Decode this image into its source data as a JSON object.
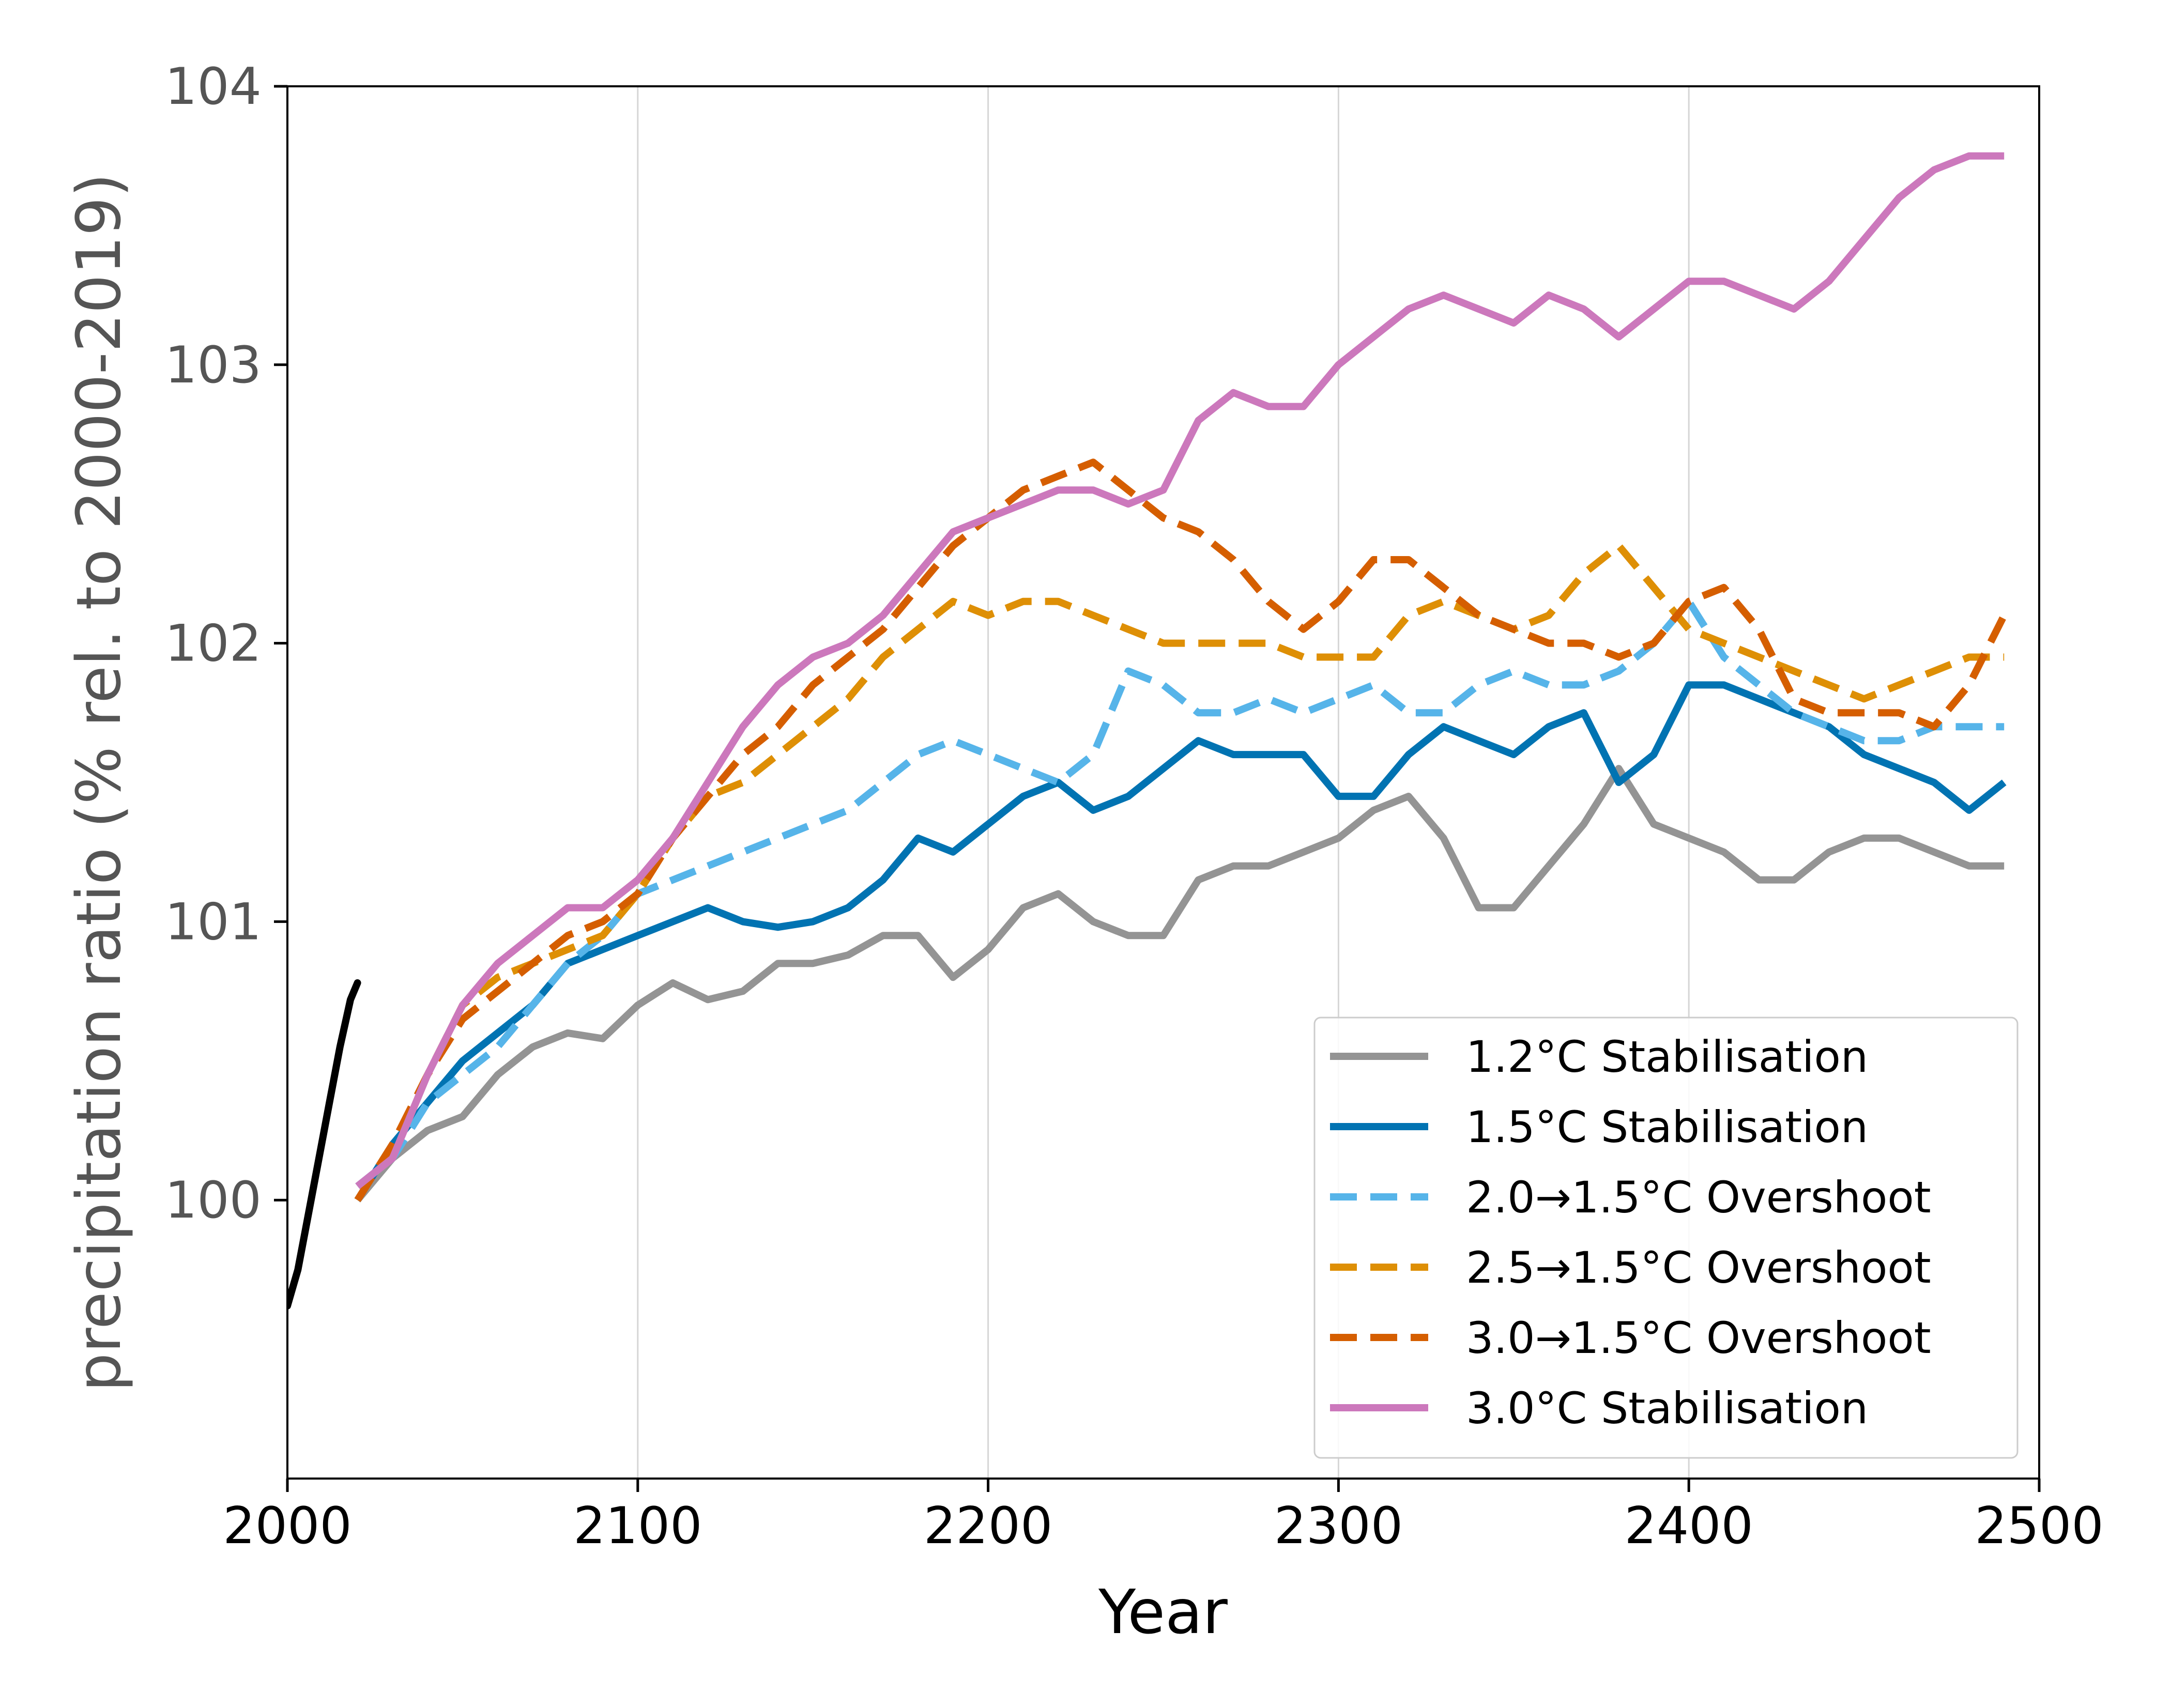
{
  "chart_data": {
    "type": "line",
    "title": "",
    "xlabel": "Year",
    "ylabel": "precipitation ratio (% rel. to 2000-2019)",
    "xlim": [
      2000,
      2500
    ],
    "ylim": [
      99,
      104
    ],
    "xticks": [
      2000,
      2100,
      2200,
      2300,
      2400,
      2500
    ],
    "yticks": [
      100,
      101,
      102,
      103,
      104
    ],
    "grid": "vertical lines at x ticks",
    "legend_position": "lower-right",
    "historical": {
      "color": "#000000",
      "x": [
        2000,
        2003,
        2006,
        2009,
        2012,
        2015,
        2018,
        2020
      ],
      "y": [
        99.62,
        99.75,
        99.95,
        100.15,
        100.35,
        100.55,
        100.72,
        100.78
      ]
    },
    "series": [
      {
        "name": "1.2°C Stabilisation",
        "color": "#949494",
        "dash": "solid",
        "x": [
          2020,
          2030,
          2040,
          2050,
          2060,
          2070,
          2080,
          2090,
          2100,
          2110,
          2120,
          2130,
          2140,
          2150,
          2160,
          2170,
          2180,
          2190,
          2200,
          2210,
          2220,
          2230,
          2240,
          2250,
          2260,
          2270,
          2280,
          2290,
          2300,
          2310,
          2320,
          2330,
          2340,
          2350,
          2360,
          2370,
          2380,
          2390,
          2400,
          2410,
          2420,
          2430,
          2440,
          2450,
          2460,
          2470,
          2480,
          2490
        ],
        "y": [
          100.0,
          100.15,
          100.25,
          100.3,
          100.45,
          100.55,
          100.6,
          100.58,
          100.7,
          100.78,
          100.72,
          100.75,
          100.85,
          100.85,
          100.88,
          100.95,
          100.95,
          100.8,
          100.9,
          101.05,
          101.1,
          101.0,
          100.95,
          100.95,
          101.15,
          101.2,
          101.2,
          101.25,
          101.3,
          101.4,
          101.45,
          101.3,
          101.05,
          101.05,
          101.2,
          101.35,
          101.55,
          101.35,
          101.3,
          101.25,
          101.15,
          101.15,
          101.25,
          101.3,
          101.3,
          101.25,
          101.2,
          101.2
        ]
      },
      {
        "name": "1.5°C Stabilisation",
        "color": "#0173b2",
        "dash": "solid",
        "x": [
          2020,
          2030,
          2040,
          2050,
          2060,
          2070,
          2080,
          2090,
          2100,
          2110,
          2120,
          2130,
          2140,
          2150,
          2160,
          2170,
          2180,
          2190,
          2200,
          2210,
          2220,
          2230,
          2240,
          2250,
          2260,
          2270,
          2280,
          2290,
          2300,
          2310,
          2320,
          2330,
          2340,
          2350,
          2360,
          2370,
          2380,
          2390,
          2400,
          2410,
          2420,
          2430,
          2440,
          2450,
          2460,
          2470,
          2480,
          2490
        ],
        "y": [
          100.0,
          100.2,
          100.35,
          100.5,
          100.6,
          100.7,
          100.85,
          100.9,
          100.95,
          101.0,
          101.05,
          101.0,
          100.98,
          101.0,
          101.05,
          101.15,
          101.3,
          101.25,
          101.35,
          101.45,
          101.5,
          101.4,
          101.45,
          101.55,
          101.65,
          101.6,
          101.6,
          101.6,
          101.45,
          101.45,
          101.6,
          101.7,
          101.65,
          101.6,
          101.7,
          101.75,
          101.5,
          101.6,
          101.85,
          101.85,
          101.8,
          101.75,
          101.7,
          101.6,
          101.55,
          101.5,
          101.4,
          101.5
        ]
      },
      {
        "name": "2.0→1.5°C Overshoot",
        "color": "#56b4e9",
        "dash": "dashed",
        "x": [
          2020,
          2030,
          2040,
          2050,
          2060,
          2070,
          2080,
          2090,
          2100,
          2110,
          2120,
          2130,
          2140,
          2150,
          2160,
          2170,
          2180,
          2190,
          2200,
          2210,
          2220,
          2230,
          2240,
          2250,
          2260,
          2270,
          2280,
          2290,
          2300,
          2310,
          2320,
          2330,
          2340,
          2350,
          2360,
          2370,
          2380,
          2390,
          2400,
          2410,
          2420,
          2430,
          2440,
          2450,
          2460,
          2470,
          2480,
          2490
        ],
        "y": [
          100.05,
          100.15,
          100.35,
          100.45,
          100.55,
          100.7,
          100.85,
          100.95,
          101.1,
          101.15,
          101.2,
          101.25,
          101.3,
          101.35,
          101.4,
          101.5,
          101.6,
          101.65,
          101.6,
          101.55,
          101.5,
          101.6,
          101.9,
          101.85,
          101.75,
          101.75,
          101.8,
          101.75,
          101.8,
          101.85,
          101.75,
          101.75,
          101.85,
          101.9,
          101.85,
          101.85,
          101.9,
          102.0,
          102.15,
          101.95,
          101.85,
          101.75,
          101.7,
          101.65,
          101.65,
          101.7,
          101.7,
          101.7
        ]
      },
      {
        "name": "2.5→1.5°C Overshoot",
        "color": "#de8f05",
        "dash": "dashed",
        "x": [
          2020,
          2030,
          2040,
          2050,
          2060,
          2070,
          2080,
          2090,
          2100,
          2110,
          2120,
          2130,
          2140,
          2150,
          2160,
          2170,
          2180,
          2190,
          2200,
          2210,
          2220,
          2230,
          2240,
          2250,
          2260,
          2270,
          2280,
          2290,
          2300,
          2310,
          2320,
          2330,
          2340,
          2350,
          2360,
          2370,
          2380,
          2390,
          2400,
          2410,
          2420,
          2430,
          2440,
          2450,
          2460,
          2470,
          2480,
          2490
        ],
        "y": [
          100.0,
          100.2,
          100.45,
          100.7,
          100.8,
          100.85,
          100.9,
          100.95,
          101.1,
          101.3,
          101.45,
          101.5,
          101.6,
          101.7,
          101.8,
          101.95,
          102.05,
          102.15,
          102.1,
          102.15,
          102.15,
          102.1,
          102.05,
          102.0,
          102.0,
          102.0,
          102.0,
          101.95,
          101.95,
          101.95,
          102.1,
          102.15,
          102.1,
          102.05,
          102.1,
          102.25,
          102.35,
          102.2,
          102.05,
          102.0,
          101.95,
          101.9,
          101.85,
          101.8,
          101.85,
          101.9,
          101.95,
          101.95
        ]
      },
      {
        "name": "3.0→1.5°C Overshoot",
        "color": "#d55e00",
        "dash": "dashed",
        "x": [
          2020,
          2030,
          2040,
          2050,
          2060,
          2070,
          2080,
          2090,
          2100,
          2110,
          2120,
          2130,
          2140,
          2150,
          2160,
          2170,
          2180,
          2190,
          2200,
          2210,
          2220,
          2230,
          2240,
          2250,
          2260,
          2270,
          2280,
          2290,
          2300,
          2310,
          2320,
          2330,
          2340,
          2350,
          2360,
          2370,
          2380,
          2390,
          2400,
          2410,
          2420,
          2430,
          2440,
          2450,
          2460,
          2470,
          2480,
          2490
        ],
        "y": [
          100.0,
          100.2,
          100.45,
          100.65,
          100.75,
          100.85,
          100.95,
          101.0,
          101.1,
          101.3,
          101.45,
          101.6,
          101.7,
          101.85,
          101.95,
          102.05,
          102.2,
          102.35,
          102.45,
          102.55,
          102.6,
          102.65,
          102.55,
          102.45,
          102.4,
          102.3,
          102.15,
          102.05,
          102.15,
          102.3,
          102.3,
          102.2,
          102.1,
          102.05,
          102.0,
          102.0,
          101.95,
          102.0,
          102.15,
          102.2,
          102.05,
          101.8,
          101.75,
          101.75,
          101.75,
          101.7,
          101.85,
          102.1
        ]
      },
      {
        "name": "3.0°C Stabilisation",
        "color": "#cc78bc",
        "dash": "solid",
        "x": [
          2020,
          2030,
          2040,
          2050,
          2060,
          2070,
          2080,
          2090,
          2100,
          2110,
          2120,
          2130,
          2140,
          2150,
          2160,
          2170,
          2180,
          2190,
          2200,
          2210,
          2220,
          2230,
          2240,
          2250,
          2260,
          2270,
          2280,
          2290,
          2300,
          2310,
          2320,
          2330,
          2340,
          2350,
          2360,
          2370,
          2380,
          2390,
          2400,
          2410,
          2420,
          2430,
          2440,
          2450,
          2460,
          2470,
          2480,
          2490
        ],
        "y": [
          100.05,
          100.15,
          100.45,
          100.7,
          100.85,
          100.95,
          101.05,
          101.05,
          101.15,
          101.3,
          101.5,
          101.7,
          101.85,
          101.95,
          102.0,
          102.1,
          102.25,
          102.4,
          102.45,
          102.5,
          102.55,
          102.55,
          102.5,
          102.55,
          102.8,
          102.9,
          102.85,
          102.85,
          103.0,
          103.1,
          103.2,
          103.25,
          103.2,
          103.15,
          103.25,
          103.2,
          103.1,
          103.2,
          103.3,
          103.3,
          103.25,
          103.2,
          103.3,
          103.45,
          103.6,
          103.7,
          103.75,
          103.75
        ]
      }
    ]
  }
}
